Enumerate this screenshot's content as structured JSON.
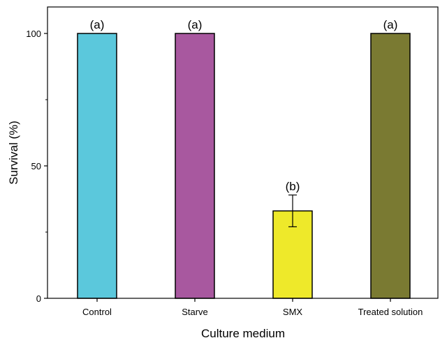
{
  "chart_data": {
    "type": "bar",
    "xlabel": "Culture medium",
    "ylabel": "Survival (%)",
    "ylim": [
      0,
      110
    ],
    "yticks": [
      0,
      50,
      100
    ],
    "categories": [
      "Control",
      "Starve",
      "SMX",
      "Treated solution"
    ],
    "values": [
      100,
      100,
      33,
      100
    ],
    "errors": [
      0,
      0,
      6,
      0
    ],
    "annotations": [
      "(a)",
      "(a)",
      "(b)",
      "(a)"
    ],
    "colors": [
      "#5BC8DC",
      "#A8589F",
      "#EEE92A",
      "#7A7A32"
    ],
    "grid": false
  }
}
